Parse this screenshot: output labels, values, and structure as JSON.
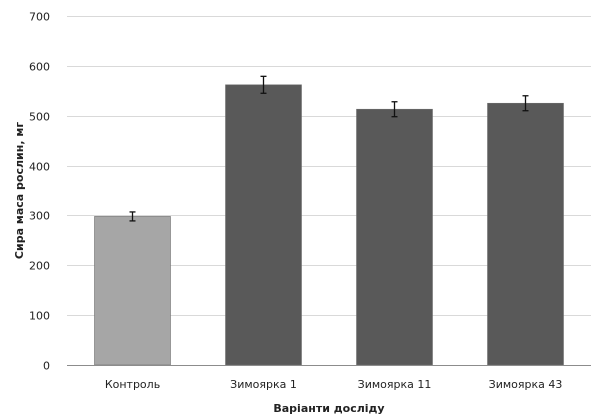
{
  "chart_data": {
    "type": "bar",
    "title": "",
    "xlabel": "Варіанти досліду",
    "ylabel": "Сира маса рослин, мг",
    "ylim": [
      0,
      700
    ],
    "yticks": [
      0,
      100,
      200,
      300,
      400,
      500,
      600,
      700
    ],
    "grid": true,
    "legend": "none",
    "categories": [
      "Контроль",
      "Зимоярка 1",
      "Зимоярка 11",
      "Зимоярка 43"
    ],
    "values": [
      298,
      562,
      513,
      525
    ],
    "errors": [
      9,
      17,
      15,
      15
    ],
    "colors": [
      "#a6a6a6",
      "#595959",
      "#595959",
      "#595959"
    ]
  }
}
